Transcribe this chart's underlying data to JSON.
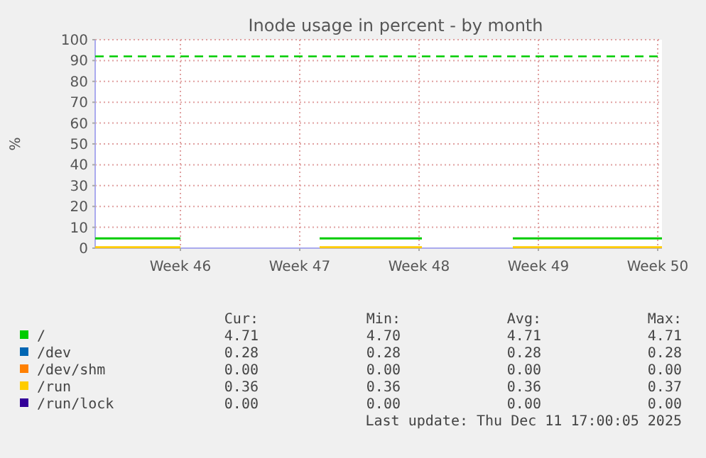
{
  "chart_data": {
    "type": "line",
    "title": "Inode usage in percent - by month",
    "ylabel": "%",
    "x": [
      "2025-11-05",
      "2025-11-10",
      "2025-11-10T02:00",
      "2025-11-18T04:00",
      "2025-11-24T04:00",
      "2025-11-24T06:00",
      "2025-11-29T12:00",
      "2025-12-08T06:00"
    ],
    "xlim": [
      "2025-11-05",
      "2025-12-08T06:00"
    ],
    "xticks": [
      {
        "value": "2025-11-10",
        "label": "Week 46"
      },
      {
        "value": "2025-11-17",
        "label": "Week 47"
      },
      {
        "value": "2025-11-24",
        "label": "Week 48"
      },
      {
        "value": "2025-12-01",
        "label": "Week 49"
      },
      {
        "value": "2025-12-08",
        "label": "Week 50"
      }
    ],
    "ylim": [
      0,
      100
    ],
    "yticks": [
      0,
      10,
      20,
      30,
      40,
      50,
      60,
      70,
      80,
      90,
      100
    ],
    "grid": true,
    "legend": "bottom",
    "line_style": "solid",
    "marker": "none",
    "series": [
      {
        "name": "/",
        "color": "#00cc00",
        "values": [
          4.7,
          4.7,
          null,
          4.7,
          4.7,
          null,
          4.7,
          4.7
        ]
      },
      {
        "name": "/dev",
        "color": "#0066b3",
        "values": [
          null,
          null,
          null,
          null,
          null,
          null,
          null,
          null
        ]
      },
      {
        "name": "/dev/shm",
        "color": "#ff8000",
        "values": [
          null,
          null,
          null,
          null,
          null,
          null,
          null,
          null
        ]
      },
      {
        "name": "/run",
        "color": "#ffcc00",
        "values": [
          0.4,
          0.4,
          null,
          0.4,
          0.4,
          null,
          0.4,
          0.4
        ]
      },
      {
        "name": "/run/lock",
        "color": "#330099",
        "values": [
          null,
          null,
          null,
          null,
          null,
          null,
          null,
          null
        ]
      }
    ],
    "ref_lines": [
      {
        "axis": "y",
        "value": 92,
        "color": "#00cc00",
        "line_style": "dashed"
      }
    ],
    "annotations": [
      "Cur:",
      "Min:",
      "Avg:",
      "Max:",
      "4.71",
      "4.70",
      "4.71",
      "4.71",
      "0.28",
      "0.28",
      "0.28",
      "0.28",
      "0.00",
      "0.00",
      "0.00",
      "0.00",
      "0.36",
      "0.36",
      "0.36",
      "0.37",
      "0.00",
      "0.00",
      "0.00",
      "0.00",
      "Last update: Thu Dec 11 17:00:05 2025"
    ]
  }
}
